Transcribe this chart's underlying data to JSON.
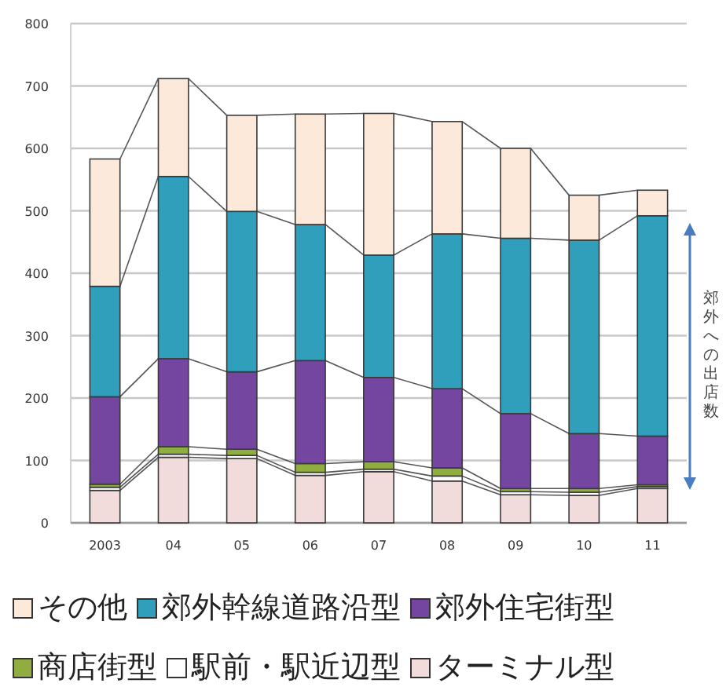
{
  "chart_data": {
    "type": "bar",
    "stacked": true,
    "categories": [
      "2003",
      "04",
      "05",
      "06",
      "07",
      "08",
      "09",
      "10",
      "11"
    ],
    "series": [
      {
        "name": "ターミナル型",
        "color": "#f2dcdb",
        "values": [
          52,
          105,
          103,
          76,
          82,
          67,
          45,
          44,
          55
        ]
      },
      {
        "name": "駅前・駅近辺型",
        "color": "#ffffff",
        "values": [
          5,
          5,
          5,
          5,
          4,
          8,
          5,
          5,
          3
        ]
      },
      {
        "name": "商店街型",
        "color": "#8fae3f",
        "values": [
          5,
          12,
          10,
          14,
          12,
          13,
          5,
          6,
          3
        ]
      },
      {
        "name": "郊外住宅街型",
        "color": "#7446a0",
        "values": [
          140,
          141,
          124,
          165,
          135,
          127,
          120,
          88,
          78
        ]
      },
      {
        "name": "郊外幹線道路沿型",
        "color": "#2f9fbc",
        "values": [
          177,
          292,
          257,
          218,
          196,
          248,
          281,
          310,
          353
        ]
      },
      {
        "name": "その他",
        "color": "#fde9d9",
        "values": [
          204,
          157,
          154,
          177,
          227,
          180,
          144,
          72,
          41
        ]
      }
    ],
    "ylim": [
      0,
      800
    ],
    "yticks": [
      0,
      100,
      200,
      300,
      400,
      500,
      600,
      700,
      800
    ],
    "grid": "y",
    "legend": "bottom",
    "annotations": [
      "郊外への出店数"
    ]
  }
}
